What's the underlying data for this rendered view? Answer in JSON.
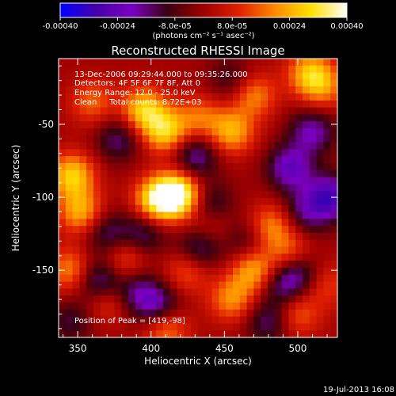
{
  "chart_data": {
    "type": "heatmap",
    "title": "Reconstructed RHESSI Image",
    "xlabel": "Heliocentric X (arcsec)",
    "ylabel": "Heliocentric Y (arcsec)",
    "xlim": [
      337,
      527
    ],
    "ylim": [
      -196,
      -5
    ],
    "x_ticks": [
      "350",
      "400",
      "450",
      "500"
    ],
    "y_ticks": [
      "-50",
      "-100",
      "-150"
    ],
    "x_tick_values": [
      350,
      400,
      450,
      500
    ],
    "y_tick_values": [
      -50,
      -100,
      -150
    ],
    "colorbar": {
      "range": [
        -0.0004,
        0.0004
      ],
      "tick_labels": [
        "-0.00040",
        "-0.00024",
        "-8.0e-05",
        "8.0e-05",
        "0.00024",
        "0.00040"
      ],
      "tick_values": [
        -0.0004,
        -0.00024,
        -8e-05,
        8e-05,
        0.00024,
        0.0004
      ],
      "units_text": "(photons cm⁻² s⁻¹ asec⁻²)",
      "colors": [
        "#0000ff",
        "#4400aa",
        "#7a00c0",
        "#3a0010",
        "#a00000",
        "#e02000",
        "#ff8a00",
        "#ffe000",
        "#ffffff"
      ]
    },
    "annotations": {
      "line1": "13-Dec-2006 09:29:44.000 to 09:35:26.000",
      "line2": "Detectors: 4F 5F 6F 7F 8F, Att 0",
      "line3": "Energy Range: 12.0 - 25.0 keV",
      "line4": "Clean     Total counts: 8.72E+03",
      "peak": "Position of Peak = [419,-98]"
    },
    "peak": [
      419,
      -98
    ],
    "blobs": [
      {
        "x": 419,
        "y": -98,
        "v": 1.0
      },
      {
        "x": 404,
        "y": -102,
        "v": 0.8
      },
      {
        "x": 395,
        "y": -40,
        "v": 0.7
      },
      {
        "x": 360,
        "y": -35,
        "v": 0.4
      },
      {
        "x": 346,
        "y": -85,
        "v": 0.7
      },
      {
        "x": 352,
        "y": -110,
        "v": 0.6
      },
      {
        "x": 345,
        "y": -150,
        "v": 0.5
      },
      {
        "x": 370,
        "y": -170,
        "v": 0.4
      },
      {
        "x": 410,
        "y": -55,
        "v": 0.7
      },
      {
        "x": 433,
        "y": -45,
        "v": 0.4
      },
      {
        "x": 455,
        "y": -55,
        "v": 0.6
      },
      {
        "x": 470,
        "y": -30,
        "v": 0.5
      },
      {
        "x": 508,
        "y": -15,
        "v": 0.6
      },
      {
        "x": 518,
        "y": -25,
        "v": 0.4
      },
      {
        "x": 482,
        "y": -120,
        "v": 0.5
      },
      {
        "x": 470,
        "y": -150,
        "v": 0.6
      },
      {
        "x": 495,
        "y": -140,
        "v": 0.5
      },
      {
        "x": 455,
        "y": -170,
        "v": 0.5
      },
      {
        "x": 425,
        "y": -150,
        "v": 0.4
      },
      {
        "x": 410,
        "y": -190,
        "v": 0.5
      },
      {
        "x": 382,
        "y": -142,
        "v": 0.4
      },
      {
        "x": 440,
        "y": -120,
        "v": 0.3
      },
      {
        "x": 500,
        "y": -180,
        "v": 0.4
      },
      {
        "x": 520,
        "y": -160,
        "v": 0.3
      },
      {
        "x": 378,
        "y": -60,
        "v": -0.4
      },
      {
        "x": 430,
        "y": -72,
        "v": -0.5
      },
      {
        "x": 495,
        "y": -80,
        "v": -0.6
      },
      {
        "x": 522,
        "y": -100,
        "v": -0.7
      },
      {
        "x": 510,
        "y": -55,
        "v": -0.5
      },
      {
        "x": 505,
        "y": -110,
        "v": -0.4
      },
      {
        "x": 433,
        "y": -135,
        "v": -0.5
      },
      {
        "x": 440,
        "y": -105,
        "v": -0.4
      },
      {
        "x": 395,
        "y": -125,
        "v": -0.4
      },
      {
        "x": 370,
        "y": -125,
        "v": -0.4
      },
      {
        "x": 365,
        "y": -158,
        "v": -0.6
      },
      {
        "x": 390,
        "y": -165,
        "v": -0.4
      },
      {
        "x": 405,
        "y": -175,
        "v": -0.5
      },
      {
        "x": 500,
        "y": -150,
        "v": -0.5
      },
      {
        "x": 490,
        "y": -160,
        "v": -0.4
      },
      {
        "x": 465,
        "y": -130,
        "v": -0.3
      },
      {
        "x": 480,
        "y": -185,
        "v": -0.4
      },
      {
        "x": 345,
        "y": -185,
        "v": -0.3
      },
      {
        "x": 455,
        "y": -20,
        "v": -0.3
      }
    ]
  },
  "footer": {
    "timestamp": "19-Jul-2013 16:08"
  }
}
